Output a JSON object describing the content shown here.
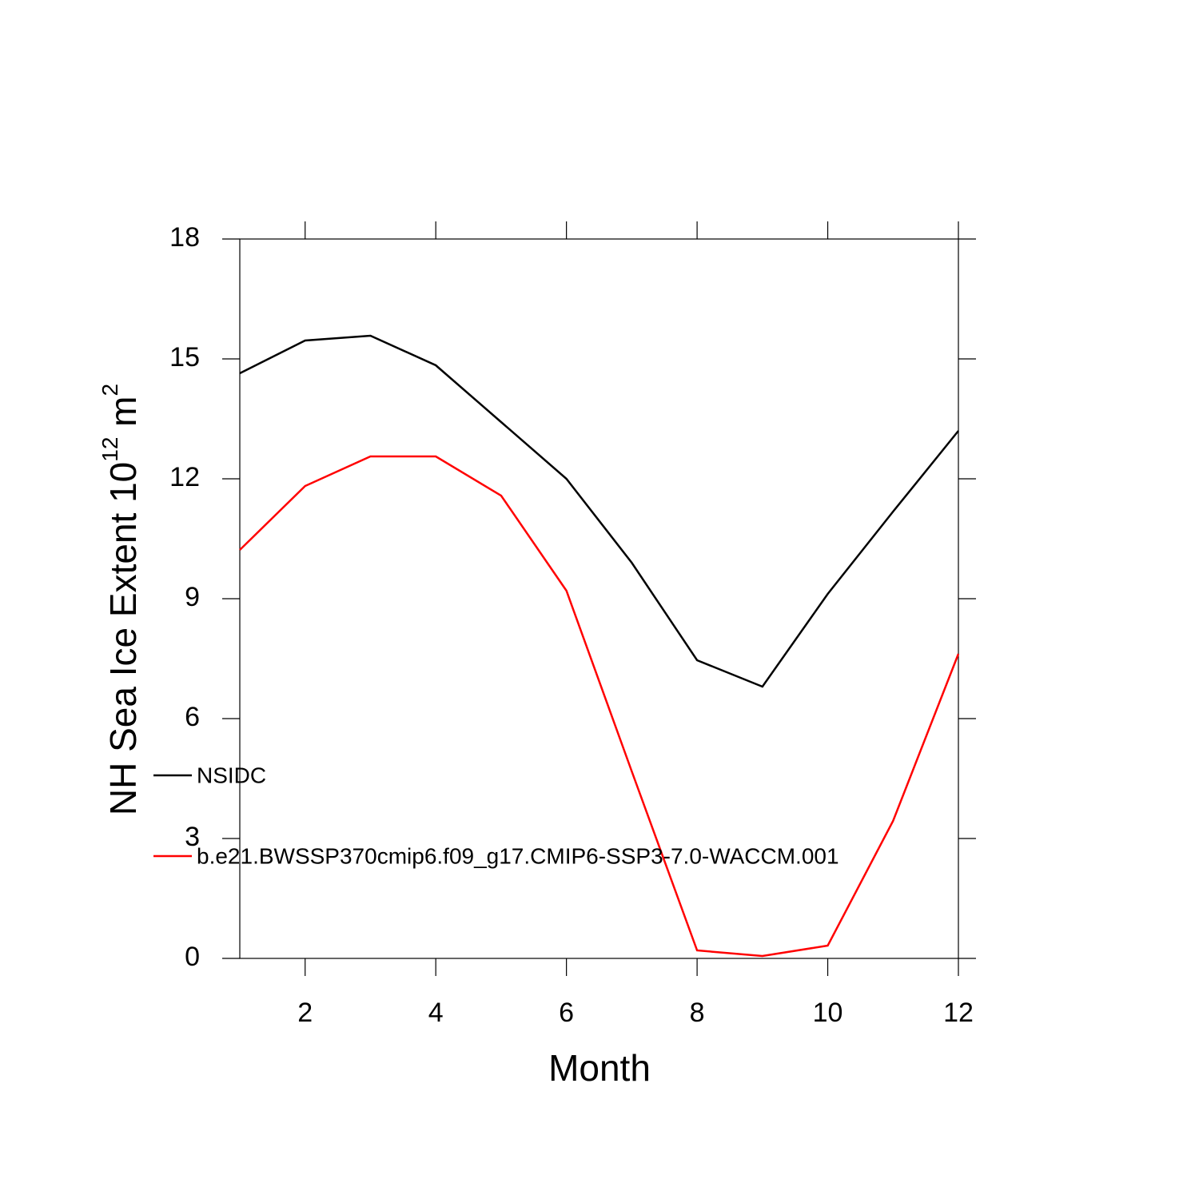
{
  "chart_data": {
    "type": "line",
    "xlabel": "Month",
    "ylabel_parts": [
      "NH Sea Ice Extent 10",
      "12",
      " m",
      "2"
    ],
    "x": [
      1,
      2,
      3,
      4,
      5,
      6,
      7,
      8,
      9,
      10,
      11,
      12
    ],
    "series": [
      {
        "name": "NSIDC",
        "color": "#000000",
        "values": [
          14.64,
          15.46,
          15.58,
          14.84,
          13.42,
          12.0,
          9.9,
          7.46,
          6.8,
          9.12,
          11.18,
          13.2
        ]
      },
      {
        "name": "b.e21.BWSSP370cmip6.f09_g17.CMIP6-SSP3-7.0-WACCM.001",
        "color": "#ff0000",
        "values": [
          10.22,
          11.82,
          12.56,
          12.56,
          11.58,
          9.2,
          4.68,
          0.2,
          0.06,
          0.32,
          3.44,
          7.62
        ]
      }
    ],
    "xlim": [
      1,
      12
    ],
    "xticks": [
      2,
      4,
      6,
      8,
      10,
      12
    ],
    "ylim": [
      0,
      18
    ],
    "yticks": [
      0,
      3,
      6,
      9,
      12,
      15,
      18
    ],
    "legend": "left"
  }
}
